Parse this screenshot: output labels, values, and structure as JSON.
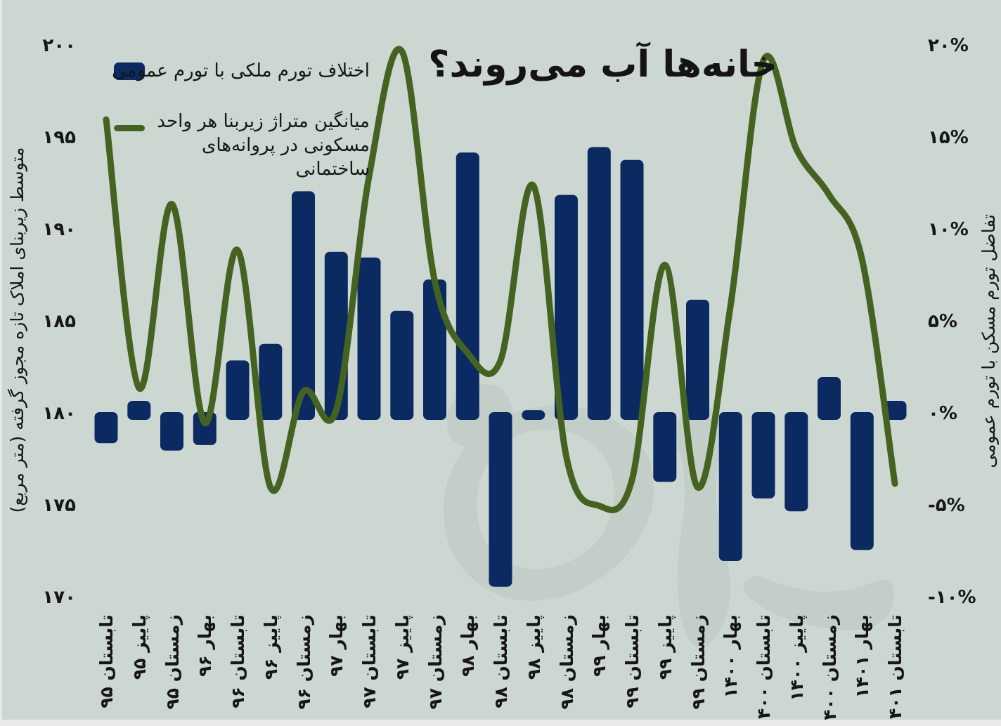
{
  "title": "خانه‌ها آب می‌روند؟",
  "legend": {
    "bar_label": "اختلاف تورم ملکی با تورم عمومی",
    "line_label_line1": "میانگین متراژ زیربنا هر واحد",
    "line_label_line2": "مسکونی در پروانه‌های ساختمانی"
  },
  "colors": {
    "background": "#cdd7d2",
    "bar": "#0b2a61",
    "line": "#456320",
    "text": "#161616",
    "watermark": "#c3cec9"
  },
  "chart_data": {
    "type": "bar",
    "subtype": "combo-bar-line",
    "title": "خانه‌ها آب می‌روند؟",
    "grid": false,
    "legend_position": "top-left",
    "categories": [
      "تابستان ۹۵",
      "پاییز ۹۵",
      "زمستان ۹۵",
      "بهار ۹۶",
      "تابستان ۹۶",
      "پاییز ۹۶",
      "زمستان ۹۶",
      "بهار ۹۷",
      "تابستان ۹۷",
      "پاییز ۹۷",
      "زمستان ۹۷",
      "بهار ۹۸",
      "تابستان ۹۸",
      "پاییز ۹۸",
      "زمستان ۹۸",
      "بهار ۹۹",
      "تابستان ۹۹",
      "پاییز ۹۹",
      "زمستان ۹۹",
      "بهار ۱۴۰۰",
      "تابستان ۱۴۰۰",
      "پاییز ۱۴۰۰",
      "زمستان ۱۴۰۰",
      "بهار ۱۴۰۱",
      "تابستان ۱۴۰۱"
    ],
    "series": [
      {
        "name": "اختلاف تورم ملکی با تورم عمومی",
        "type": "bar",
        "axis": "right",
        "unit": "percentage points",
        "values": [
          -1.5,
          0.8,
          -1.9,
          -1.6,
          3.0,
          3.9,
          12.2,
          8.9,
          8.6,
          5.7,
          7.4,
          14.3,
          -9.3,
          0.3,
          12.0,
          14.6,
          13.9,
          -3.6,
          6.3,
          -7.9,
          -4.5,
          -5.2,
          2.1,
          -7.3,
          0.8
        ]
      },
      {
        "name": "میانگین متراژ زیربنا هر واحد مسکونی در پروانه‌های ساختمانی",
        "type": "line",
        "axis": "left",
        "unit": "متر مربع",
        "values": [
          196.1,
          181.5,
          191.5,
          179.6,
          189.0,
          176.1,
          181.3,
          180.3,
          193.0,
          199.8,
          187.3,
          183.4,
          183.0,
          192.5,
          177.8,
          175.1,
          176.5,
          188.2,
          176.1,
          186.0,
          199.3,
          194.5,
          192.0,
          188.5,
          176.3
        ]
      }
    ],
    "left_axis": {
      "title": "متوسط زیربنای املاک تازه مجوز گرفته (متر مربع)",
      "tick_labels": [
        "۲۰۰",
        "۱۹۵",
        "۱۹۰",
        "۱۸۵",
        "۱۸۰",
        "۱۷۵",
        "۱۷۰"
      ],
      "tick_values": [
        200,
        195,
        190,
        185,
        180,
        175,
        170
      ],
      "range": [
        168,
        202
      ]
    },
    "right_axis": {
      "title": "تفاضل تورم مسکن با تورم عمومی",
      "tick_labels": [
        "۲۰%",
        "۱۵%",
        "۱۰%",
        "۵%",
        "۰%",
        "-۵%",
        "-۱۰%"
      ],
      "tick_values": [
        20,
        15,
        10,
        5,
        0,
        -5,
        -10
      ],
      "range": [
        -12,
        22
      ]
    }
  }
}
